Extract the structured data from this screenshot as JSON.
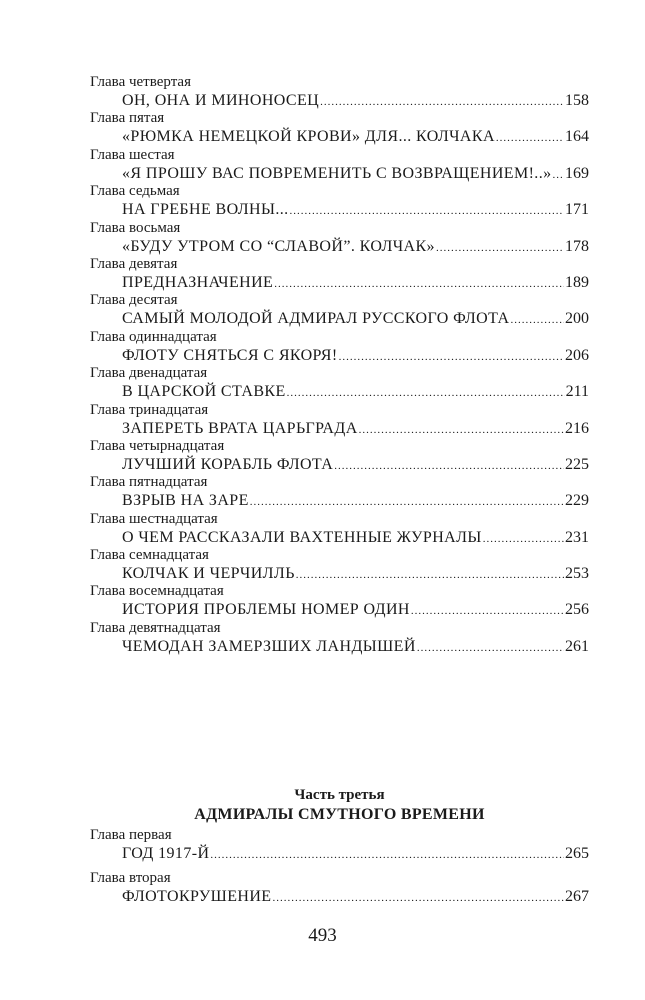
{
  "part_two_entries": [
    {
      "label": "Глава четвертая",
      "title": "ОН, ОНА И МИНОНОСЕЦ",
      "page": "158"
    },
    {
      "label": "Глава пятая",
      "title": "«РЮМКА НЕМЕЦКОЙ КРОВИ» ДЛЯ... КОЛЧАКА",
      "page": "164"
    },
    {
      "label": "Глава шестая",
      "title": "«Я ПРОШУ ВАС ПОВРЕМЕНИТЬ С ВОЗВРАЩЕНИЕМ!..»",
      "page": "169"
    },
    {
      "label": "Глава седьмая",
      "title": "НА ГРЕБНЕ ВОЛНЫ...",
      "page": "171"
    },
    {
      "label": "Глава восьмая",
      "title": "«БУДУ УТРОМ СО “СЛАВОЙ”. КОЛЧАК»",
      "page": "178"
    },
    {
      "label": "Глава девятая",
      "title": "ПРЕДНАЗНАЧЕНИЕ",
      "page": "189"
    },
    {
      "label": "Глава десятая",
      "title": "САМЫЙ МОЛОДОЙ АДМИРАЛ РУССКОГО ФЛОТА",
      "page": "200"
    },
    {
      "label": "Глава одиннадцатая",
      "title": "ФЛОТУ СНЯТЬСЯ С ЯКОРЯ!",
      "page": "206"
    },
    {
      "label": "Глава двенадцатая",
      "title": "В ЦАРСКОЙ СТАВКЕ",
      "page": "211"
    },
    {
      "label": "Глава тринадцатая",
      "title": "ЗАПЕРЕТЬ ВРАТА ЦАРЬГРАДА",
      "page": "216"
    },
    {
      "label": "Глава четырнадцатая",
      "title": "ЛУЧШИЙ КОРАБЛЬ ФЛОТА",
      "page": "225"
    },
    {
      "label": "Глава пятнадцатая",
      "title": "ВЗРЫВ НА ЗАРЕ",
      "page": "229"
    },
    {
      "label": "Глава шестнадцатая",
      "title": "О ЧЕМ РАССКАЗАЛИ ВАХТЕННЫЕ ЖУРНАЛЫ",
      "page": "231"
    },
    {
      "label": "Глава семнадцатая",
      "title": "КОЛЧАК И ЧЕРЧИЛЛЬ",
      "page": "253"
    },
    {
      "label": "Глава восемнадцатая",
      "title": "ИСТОРИЯ ПРОБЛЕМЫ НОМЕР ОДИН",
      "page": "256"
    },
    {
      "label": "Глава девятнадцатая",
      "title": "ЧЕМОДАН ЗАМЕРЗШИХ ЛАНДЫШЕЙ",
      "page": "261"
    }
  ],
  "part_three": {
    "label": "Часть третья",
    "title": "АДМИРАЛЫ СМУТНОГО ВРЕМЕНИ",
    "entries": [
      {
        "label": "Глава первая",
        "title": "ГОД 1917-Й",
        "page": "265"
      },
      {
        "label": "Глава вторая",
        "title": "ФЛОТОКРУШЕНИЕ",
        "page": "267"
      }
    ]
  },
  "folio": "493"
}
